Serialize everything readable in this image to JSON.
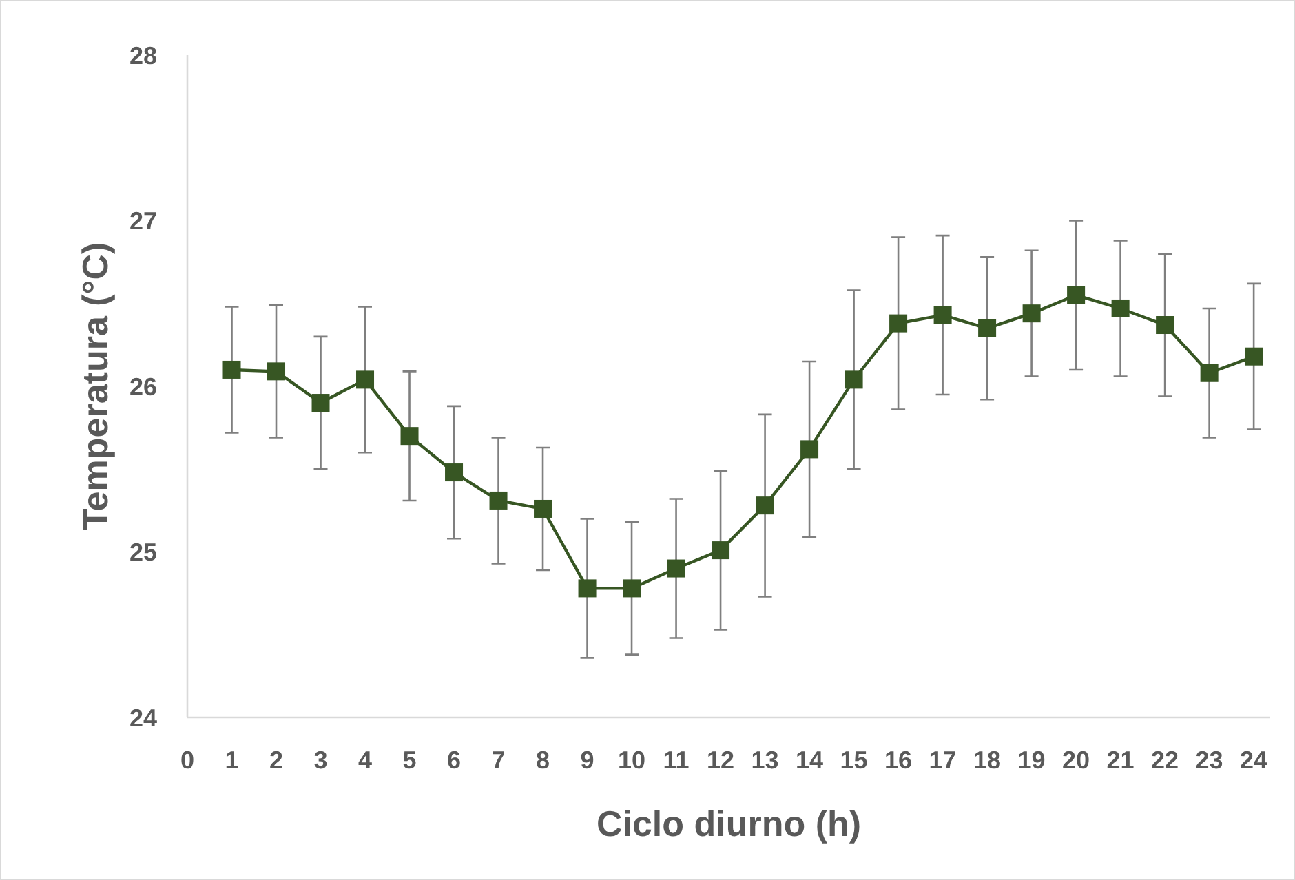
{
  "chart_data": {
    "type": "line",
    "xlabel": "Ciclo diurno (h)",
    "ylabel": "Temperatura (°C)",
    "x": [
      1,
      2,
      3,
      4,
      5,
      6,
      7,
      8,
      9,
      10,
      11,
      12,
      13,
      14,
      15,
      16,
      17,
      18,
      19,
      20,
      21,
      22,
      23,
      24
    ],
    "series": [
      {
        "color": "#375623",
        "values": [
          26.1,
          26.09,
          25.9,
          26.04,
          25.7,
          25.48,
          25.31,
          25.26,
          24.78,
          24.78,
          24.9,
          25.01,
          25.28,
          25.62,
          26.04,
          26.38,
          26.43,
          26.35,
          26.44,
          26.55,
          26.47,
          26.37,
          26.08,
          26.18
        ],
        "errors": [
          0.38,
          0.4,
          0.4,
          0.44,
          0.39,
          0.4,
          0.38,
          0.37,
          0.42,
          0.4,
          0.42,
          0.48,
          0.55,
          0.53,
          0.54,
          0.52,
          0.48,
          0.43,
          0.38,
          0.45,
          0.41,
          0.43,
          0.39,
          0.44
        ]
      }
    ],
    "xlim": [
      0,
      24.37
    ],
    "xticks": [
      0,
      1,
      2,
      3,
      4,
      5,
      6,
      7,
      8,
      9,
      10,
      11,
      12,
      13,
      14,
      15,
      16,
      17,
      18,
      19,
      20,
      21,
      22,
      23,
      24
    ],
    "ylim": [
      24,
      28
    ],
    "yticks": [
      24,
      25,
      26,
      27,
      28
    ],
    "grid": false,
    "marker": "square",
    "line_style": "solid"
  }
}
